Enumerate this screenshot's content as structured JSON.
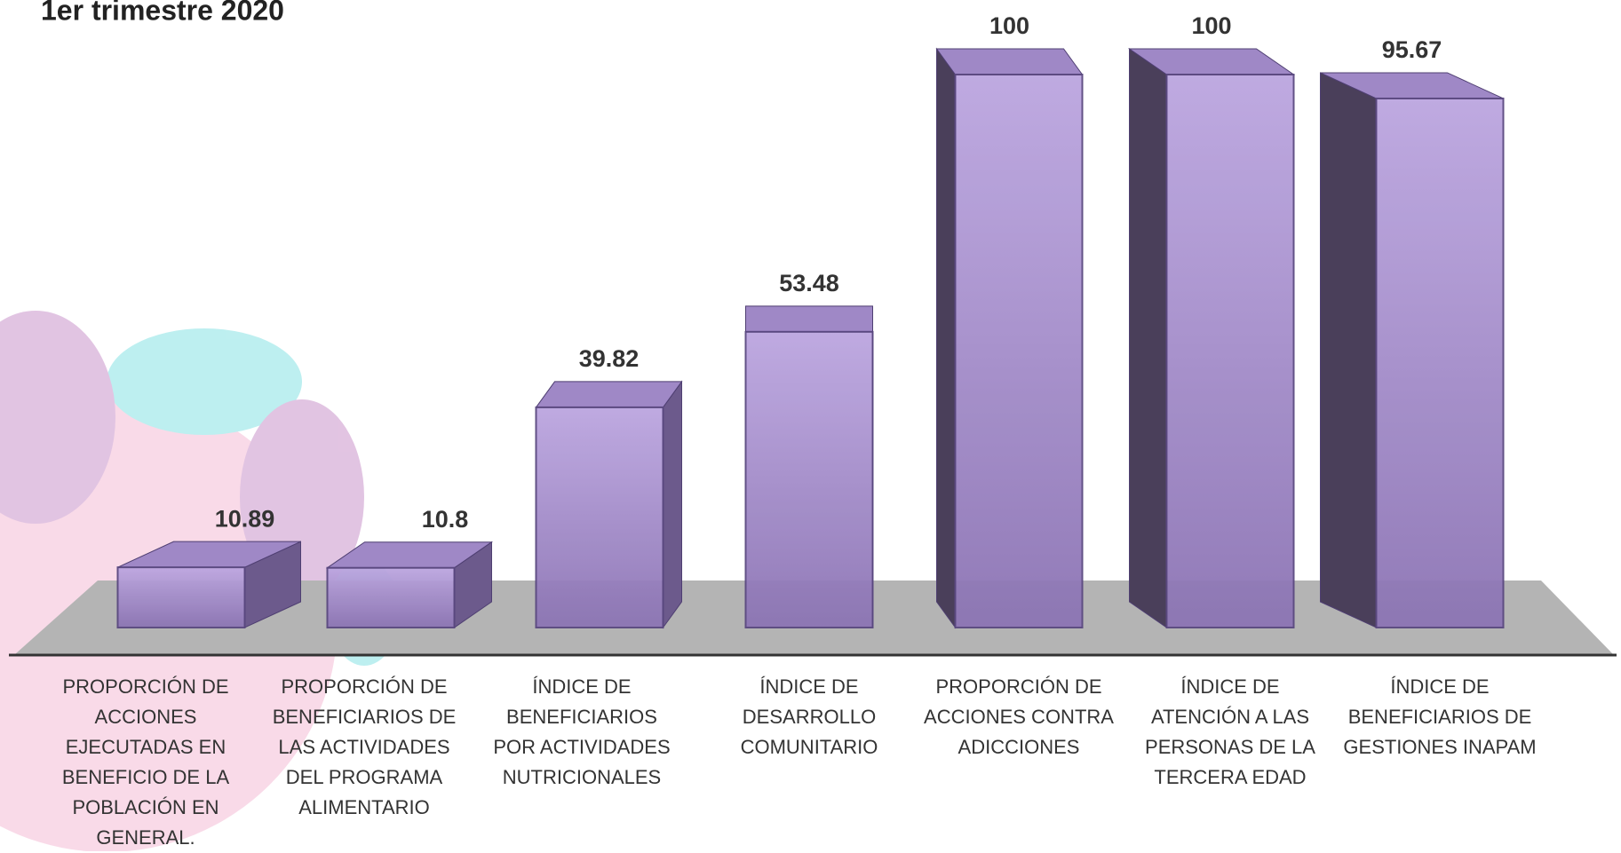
{
  "chart_data": {
    "type": "bar3d",
    "title": "1er trimestre 2020",
    "categories": [
      "PROPORCIÓN DE ACCIONES EJECUTADAS EN BENEFICIO DE LA POBLACIÓN EN GENERAL.",
      "PROPORCIÓN DE BENEFICIARIOS DE LAS ACTIVIDADES DEL PROGRAMA ALIMENTARIO",
      "ÍNDICE DE BENEFICIARIOS POR ACTIVIDADES NUTRICIONALES",
      "ÍNDICE DE DESARROLLO COMUNITARIO",
      "PROPORCIÓN DE ACCIONES CONTRA ADICCIONES",
      "ÍNDICE DE ATENCIÓN A LAS PERSONAS DE LA TERCERA EDAD",
      "ÍNDICE DE BENEFICIARIOS DE GESTIONES INAPAM"
    ],
    "values": [
      10.89,
      10.8,
      39.82,
      53.48,
      100,
      100,
      95.67
    ],
    "color": "#9a82c2"
  }
}
